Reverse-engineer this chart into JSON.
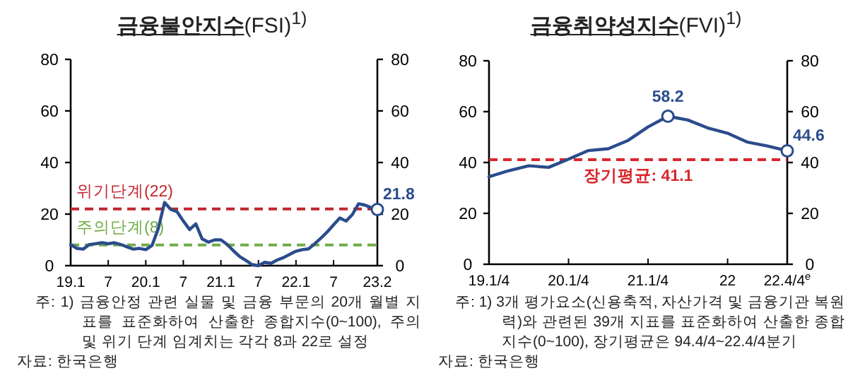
{
  "chart_data": [
    {
      "type": "line",
      "title": "**금융불안지수**(FSI)$^{1)}$",
      "categories": [
        "19.1",
        null,
        null,
        null,
        null,
        null,
        "7",
        null,
        null,
        null,
        null,
        null,
        "20.1",
        null,
        null,
        null,
        null,
        null,
        "7",
        null,
        null,
        null,
        null,
        null,
        "21.1",
        null,
        null,
        null,
        null,
        null,
        "7",
        null,
        null,
        null,
        null,
        null,
        "22.1",
        null,
        null,
        null,
        null,
        null,
        "7",
        null,
        null,
        null,
        null,
        null,
        null,
        "23.2"
      ],
      "series": [
        {
          "color": "#2b4c8c",
          "values": [
            8.2,
            6.7,
            6.4,
            8.2,
            8.5,
            8.9,
            8.5,
            8.9,
            8.2,
            7.3,
            6.4,
            6.7,
            6.2,
            7.8,
            14.4,
            24.5,
            21.8,
            20.9,
            17.3,
            14,
            16.2,
            10.4,
            9.1,
            10,
            10,
            8.2,
            5.8,
            3.5,
            2,
            0.4,
            0,
            1.3,
            0.9,
            2.2,
            3.1,
            4.4,
            5.6,
            6.2,
            6.5,
            8.5,
            10.7,
            13.1,
            15.8,
            18.5,
            17.3,
            19.8,
            24,
            23.5,
            22.5,
            21.8
          ],
          "value_labels": [
            null,
            null,
            null,
            null,
            null,
            null,
            null,
            null,
            null,
            null,
            null,
            null,
            null,
            null,
            null,
            null,
            null,
            null,
            null,
            null,
            null,
            null,
            null,
            null,
            null,
            null,
            null,
            null,
            null,
            null,
            null,
            null,
            null,
            null,
            null,
            null,
            null,
            null,
            null,
            null,
            null,
            null,
            null,
            null,
            null,
            null,
            null,
            null,
            null,
            "21.8"
          ]
        }
      ],
      "ylim": [
        0,
        80
      ],
      "yticks": [
        0,
        20,
        40,
        60,
        80
      ],
      "y2lim": [
        0,
        80
      ],
      "y2ticks": [
        0,
        20,
        40,
        60,
        80
      ],
      "ref_lines": [
        {
          "axis": "y",
          "value": 22,
          "label": "위기단계(22)",
          "color": "#c0272d",
          "line_style": "dashed"
        },
        {
          "axis": "y",
          "value": 8,
          "label": "주의단계(8)",
          "color": "#70ad47",
          "line_style": "dashed"
        }
      ],
      "annotations": [
        "주: 1) 금융안정 관련 실물 및 금융 부문의 20개 월별 지표를 표준화하여 산출한 종합지수(0~100), 주의 및 위기 단계 임계치는 각각 8과 22로 설정",
        "자료: 한국은행"
      ]
    },
    {
      "type": "line",
      "title": "**금융취약성지수**(FVI)$^{1)}$",
      "categories": [
        "19.1/4",
        null,
        null,
        null,
        "20.1/4",
        null,
        null,
        null,
        "21.1/4",
        null,
        null,
        null,
        "22",
        null,
        null,
        "22.4/4$^{e}$"
      ],
      "series": [
        {
          "color": "#2b4c8c",
          "values": [
            34.4,
            36.8,
            38.7,
            38.1,
            41.3,
            44.7,
            45.4,
            48.7,
            54,
            58.2,
            56.7,
            53.6,
            51.5,
            48,
            46.5,
            44.6
          ],
          "value_labels": [
            null,
            null,
            null,
            null,
            null,
            null,
            null,
            null,
            null,
            "58.2",
            null,
            null,
            null,
            null,
            null,
            "44.6"
          ]
        }
      ],
      "ylim": [
        0,
        80
      ],
      "yticks": [
        0,
        20,
        40,
        60,
        80
      ],
      "y2lim": [
        0,
        80
      ],
      "y2ticks": [
        0,
        20,
        40,
        60,
        80
      ],
      "ref_lines": [
        {
          "axis": "y",
          "value": 41.1,
          "label": "장기평균: 41.1",
          "color": "#d9262c",
          "line_style": "dashed"
        }
      ],
      "annotations": [
        "주: 1) 3개 평가요소(신용축적, 자산가격 및 금융기관 복원력)와 관련된 39개 지표를 표준화하여 산출한 종합지수(0~100), 장기평균은 94.4/4~22.4/4분기",
        "자료: 한국은행"
      ]
    }
  ]
}
